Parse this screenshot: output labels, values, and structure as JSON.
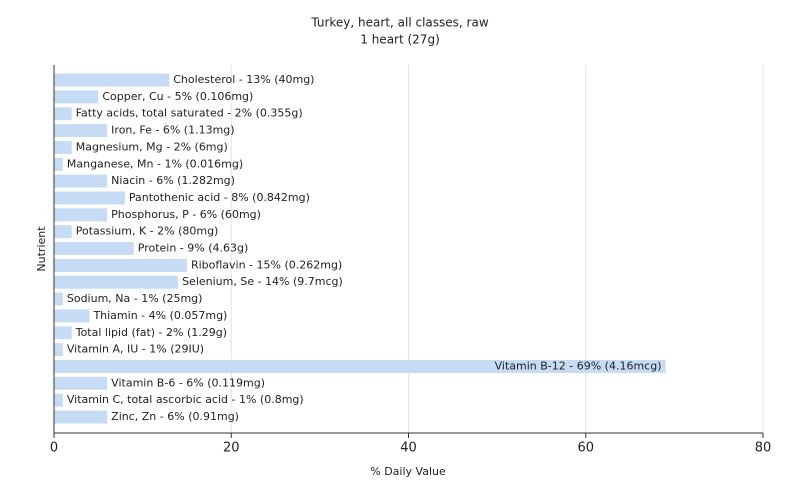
{
  "chart_data": {
    "type": "bar",
    "orientation": "horizontal",
    "title": "Turkey, heart, all classes, raw",
    "subtitle": "1 heart (27g)",
    "x_label": "% Daily Value",
    "y_label": "Nutrient",
    "categories": [
      "Cholesterol - 13% (40mg)",
      "Copper, Cu - 5% (0.106mg)",
      "Fatty acids, total saturated - 2% (0.355g)",
      "Iron, Fe - 6% (1.13mg)",
      "Magnesium, Mg - 2% (6mg)",
      "Manganese, Mn - 1% (0.016mg)",
      "Niacin - 6% (1.282mg)",
      "Pantothenic acid - 8% (0.842mg)",
      "Phosphorus, P - 6% (60mg)",
      "Potassium, K - 2% (80mg)",
      "Protein - 9% (4.63g)",
      "Riboflavin - 15% (0.262mg)",
      "Selenium, Se - 14% (9.7mcg)",
      "Sodium, Na - 1% (25mg)",
      "Thiamin - 4% (0.057mg)",
      "Total lipid (fat) - 2% (1.29g)",
      "Vitamin A, IU - 1% (29IU)",
      "Vitamin B-12 - 69% (4.16mcg)",
      "Vitamin B-6 - 6% (0.119mg)",
      "Vitamin C, total ascorbic acid - 1% (0.8mg)",
      "Zinc, Zn - 6% (0.91mg)"
    ],
    "values": [
      13,
      5,
      2,
      6,
      2,
      1,
      6,
      8,
      6,
      2,
      9,
      15,
      14,
      1,
      4,
      2,
      1,
      69,
      6,
      1,
      6
    ],
    "color": "#c6dcf5",
    "xlim": [
      0,
      80
    ],
    "xticks": [
      0,
      20,
      40,
      60,
      80
    ],
    "grid": true
  }
}
